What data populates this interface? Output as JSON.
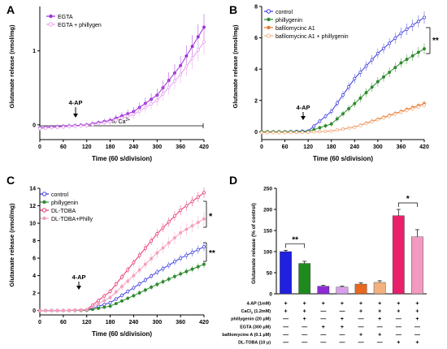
{
  "chart_data": [
    {
      "panel": "A",
      "type": "line",
      "x": [
        0,
        60,
        120,
        180,
        240,
        300,
        360,
        420
      ],
      "xticks": [
        "0",
        "60",
        "120",
        "180",
        "240",
        "300",
        "360",
        "420"
      ],
      "xlabel": "Time (60 s/division)",
      "ylabel": "Glutamate release (nmol/mg)",
      "ylim": [
        -0.2,
        1.6
      ],
      "yticks": [
        "0",
        "1"
      ],
      "yticks_values": [
        0,
        1
      ],
      "legend_position": "top-left",
      "series": [
        {
          "name": "EGTA",
          "color": "#9b30d9",
          "marker": "filled",
          "values": [
            -0.04,
            -0.02,
            0.0,
            0.06,
            0.18,
            0.4,
            0.8,
            1.32
          ],
          "err": [
            0.03,
            0.03,
            0.03,
            0.04,
            0.06,
            0.09,
            0.13,
            0.18
          ]
        },
        {
          "name": "EGTA + phillygen",
          "color": "#e5a0ec",
          "marker": "open",
          "values": [
            -0.05,
            -0.03,
            -0.01,
            0.04,
            0.14,
            0.33,
            0.68,
            1.12
          ],
          "err": [
            0.03,
            0.03,
            0.03,
            0.04,
            0.06,
            0.08,
            0.12,
            0.17
          ]
        }
      ],
      "annotations": {
        "stimulus": "4-AP",
        "stimulus_x": 100,
        "bar_text": "no Ca",
        "bar_sup": "2+"
      }
    },
    {
      "panel": "B",
      "type": "line",
      "x": [
        0,
        60,
        120,
        180,
        240,
        300,
        360,
        420
      ],
      "xticks": [
        "0",
        "60",
        "120",
        "180",
        "240",
        "300",
        "360",
        "420"
      ],
      "xlabel": "Time (60 s/division)",
      "ylabel": "Glutamate release (nmol/mg)",
      "ylim": [
        -0.5,
        8
      ],
      "yticks": [
        "0",
        "2",
        "4",
        "6",
        "8"
      ],
      "yticks_values": [
        0,
        2,
        4,
        6,
        8
      ],
      "legend_position": "top-left",
      "series": [
        {
          "name": "control",
          "color": "#3a3ae0",
          "marker": "open",
          "values": [
            0.0,
            0.0,
            0.05,
            1.3,
            3.4,
            5.0,
            6.3,
            7.3
          ],
          "err": [
            0.1,
            0.1,
            0.1,
            0.2,
            0.3,
            0.3,
            0.35,
            0.4
          ]
        },
        {
          "name": "phillygenin",
          "color": "#2e8b2e",
          "marker": "filled",
          "values": [
            0.0,
            0.0,
            0.02,
            0.5,
            1.8,
            3.2,
            4.4,
            5.3
          ],
          "err": [
            0.1,
            0.1,
            0.1,
            0.15,
            0.25,
            0.3,
            0.3,
            0.35
          ]
        },
        {
          "name": "bafilomycinc A1",
          "color": "#e87a30",
          "marker": "filled",
          "values": [
            -0.05,
            -0.05,
            -0.03,
            0.05,
            0.3,
            0.8,
            1.3,
            1.8
          ],
          "err": [
            0.05,
            0.05,
            0.05,
            0.06,
            0.1,
            0.12,
            0.15,
            0.18
          ]
        },
        {
          "name": "bafilomycinc A1 + phillygenin",
          "color": "#f2b48a",
          "marker": "open",
          "values": [
            -0.05,
            -0.05,
            -0.03,
            0.04,
            0.28,
            0.76,
            1.25,
            1.7
          ],
          "err": [
            0.05,
            0.05,
            0.05,
            0.06,
            0.1,
            0.12,
            0.15,
            0.18
          ]
        }
      ],
      "annotations": {
        "stimulus": "4-AP",
        "stimulus_x": 110,
        "significance": "**"
      }
    },
    {
      "panel": "C",
      "type": "line",
      "x": [
        0,
        60,
        120,
        180,
        240,
        300,
        360,
        420
      ],
      "xticks": [
        "0",
        "60",
        "120",
        "180",
        "240",
        "300",
        "360",
        "420"
      ],
      "xlabel": "Time (60 s/division)",
      "ylabel": "Glutamate release (nmol/mg)",
      "ylim": [
        -0.5,
        14
      ],
      "yticks": [
        "0",
        "2",
        "4",
        "6",
        "8",
        "10",
        "12",
        "14"
      ],
      "yticks_values": [
        0,
        2,
        4,
        6,
        8,
        10,
        12,
        14
      ],
      "legend_position": "top-left",
      "series": [
        {
          "name": "control",
          "color": "#3a3ae0",
          "marker": "open",
          "values": [
            0.0,
            0.0,
            0.05,
            0.9,
            2.6,
            4.4,
            6.0,
            7.3
          ],
          "err": [
            0.1,
            0.1,
            0.1,
            0.2,
            0.3,
            0.35,
            0.4,
            0.5
          ]
        },
        {
          "name": "phillygenin",
          "color": "#2e8b2e",
          "marker": "filled",
          "values": [
            0.0,
            0.0,
            0.02,
            0.5,
            1.7,
            3.0,
            4.2,
            5.3
          ],
          "err": [
            0.1,
            0.1,
            0.1,
            0.15,
            0.25,
            0.3,
            0.35,
            0.4
          ]
        },
        {
          "name": "DL-TOBA",
          "color": "#e8306e",
          "marker": "open",
          "values": [
            0.0,
            0.0,
            0.1,
            2.2,
            5.5,
            8.8,
            11.5,
            13.5
          ],
          "err": [
            0.1,
            0.1,
            0.15,
            0.3,
            0.4,
            0.5,
            0.55,
            0.6
          ]
        },
        {
          "name": "DL-TOBA+Philly",
          "color": "#f5a0c0",
          "marker": "filled",
          "values": [
            0.0,
            0.0,
            0.08,
            1.5,
            4.0,
            6.6,
            8.9,
            10.5
          ],
          "err": [
            0.1,
            0.1,
            0.15,
            0.3,
            0.45,
            0.6,
            0.7,
            0.8
          ]
        }
      ],
      "annotations": {
        "stimulus": "4-AP",
        "stimulus_x": 100,
        "significance_top": "*",
        "significance_bottom": "**"
      }
    },
    {
      "panel": "D",
      "type": "bar",
      "ylabel": "Glutamate release (% of control)",
      "ylim": [
        0,
        250
      ],
      "yticks": [
        "0",
        "50",
        "100",
        "150",
        "200",
        "250"
      ],
      "yticks_values": [
        0,
        50,
        100,
        150,
        200,
        250
      ],
      "values": [
        100,
        72,
        18,
        16,
        23,
        27,
        185,
        135
      ],
      "err": [
        3,
        5,
        2,
        2,
        3,
        4,
        15,
        17
      ],
      "colors": [
        "#2020e0",
        "#1e8a1e",
        "#8e2bd6",
        "#d8a0ea",
        "#e8681e",
        "#f3b17f",
        "#e8206a",
        "#f29ac0"
      ],
      "significance": [
        {
          "text": "**",
          "from": 0,
          "to": 1
        },
        {
          "text": "*",
          "from": 6,
          "to": 7
        }
      ],
      "table": {
        "rows": [
          {
            "label": "4-AP (1mM)",
            "marks": [
              "+",
              "+",
              "+",
              "+",
              "+",
              "+",
              "+",
              "+"
            ]
          },
          {
            "label": "CaCl",
            "label_sub": "2",
            "label_rest": " (1.2mM)",
            "marks": [
              "+",
              "+",
              "—",
              "—",
              "+",
              "+",
              "+",
              "+"
            ]
          },
          {
            "label": "phillygenin (20 μM)",
            "marks": [
              "—",
              "+",
              "—",
              "+",
              "—",
              "+",
              "—",
              "+"
            ]
          },
          {
            "label": "EGTA (300 μM)",
            "marks": [
              "—",
              "—",
              "+",
              "+",
              "—",
              "—",
              "—",
              "—"
            ]
          },
          {
            "label": "bafilomycine A (0.1 μM)",
            "marks": [
              "—",
              "—",
              "—",
              "—",
              "+",
              "+",
              "—",
              "—"
            ]
          },
          {
            "label": "DL-TOBA (10 μ)",
            "marks": [
              "—",
              "—",
              "—",
              "—",
              "—",
              "—",
              "+",
              "+"
            ]
          }
        ]
      }
    }
  ]
}
